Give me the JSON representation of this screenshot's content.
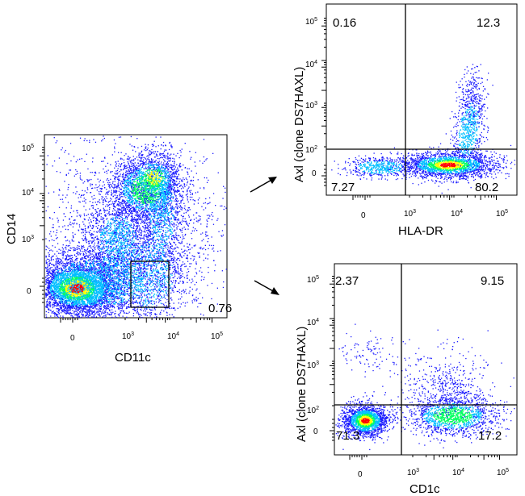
{
  "chart_data": [
    {
      "id": "p1",
      "type": "scatter",
      "subtype": "flow-cytometry-density-plot",
      "xlabel": "CD11c",
      "ylabel": "CD14",
      "scale": "biexponential",
      "xticks": [
        "0",
        "10^3",
        "10^4",
        "10^5"
      ],
      "yticks": [
        "0",
        "10^3",
        "10^4",
        "10^5"
      ],
      "populations": [
        {
          "name": "",
          "x_center": 0,
          "y_center": 0,
          "density": "very high"
        },
        {
          "name": "",
          "x_center": 6000,
          "y_center": 15000,
          "density": "high"
        },
        {
          "name": "",
          "x_center": 1500,
          "y_center": 1500,
          "density": "medium"
        }
      ],
      "gate": {
        "shape": "rectangle",
        "x_range": [
          1500,
          8000
        ],
        "y_range": [
          -300,
          800
        ],
        "percent": "0.76"
      },
      "annotations": [
        "0.76"
      ]
    },
    {
      "id": "p2",
      "type": "scatter",
      "subtype": "flow-cytometry-density-plot",
      "xlabel": "HLA-DR",
      "ylabel": "Axl (clone DS7HAXL)",
      "scale": "biexponential",
      "xticks": [
        "0",
        "10^3",
        "10^4",
        "10^5"
      ],
      "yticks": [
        "0",
        "10^2",
        "10^3",
        "10^4",
        "10^5"
      ],
      "quadrant_lines": {
        "x": 800,
        "y": 120
      },
      "quadrants": {
        "top_left": "0.16",
        "top_right": "12.3",
        "bottom_left": "7.27",
        "bottom_right": "80.2"
      }
    },
    {
      "id": "p3",
      "type": "scatter",
      "subtype": "flow-cytometry-density-plot",
      "xlabel": "CD1c",
      "ylabel": "Axl (clone DS7HAXL)",
      "scale": "biexponential",
      "xticks": [
        "0",
        "10^3",
        "10^4",
        "10^5"
      ],
      "yticks": [
        "0",
        "10^2",
        "10^3",
        "10^4",
        "10^5"
      ],
      "quadrant_lines": {
        "x": 500,
        "y": 120
      },
      "quadrants": {
        "top_left": "2.37",
        "top_right": "9.15",
        "bottom_left": "71.3",
        "bottom_right": "17.2"
      }
    }
  ],
  "colors": {
    "density_low": "#1a1aff",
    "density_midlow": "#00bfff",
    "density_mid": "#00ff60",
    "density_midhigh": "#ffff00",
    "density_high": "#ff0000",
    "lines": "#000000"
  }
}
